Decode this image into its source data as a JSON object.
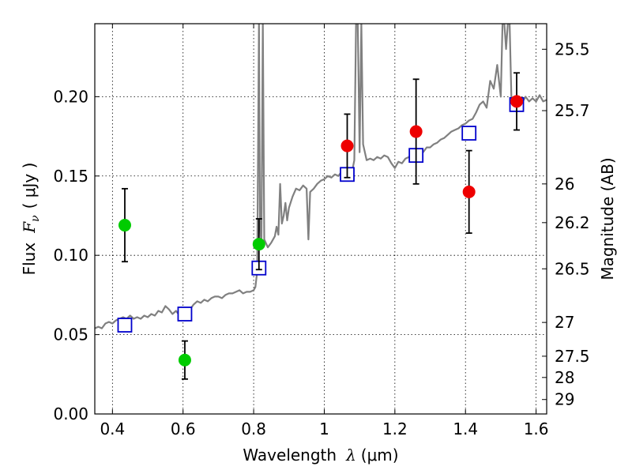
{
  "chart_data": {
    "type": "scatter",
    "xlabel_main": "Wavelength",
    "xlabel_symbol": "λ",
    "xlabel_unit": "(μm)",
    "ylabel_main": "Flux",
    "ylabel_symbol": "F",
    "ylabel_subscript": "ν",
    "ylabel_unit": "( μJy )",
    "y2label": "Magnitude (AB)",
    "xlim": [
      0.35,
      1.63
    ],
    "ylim": [
      0.0,
      0.246
    ],
    "grid": true,
    "x_ticks": [
      0.4,
      0.6,
      0.8,
      1.0,
      1.2,
      1.4,
      1.6
    ],
    "x_tick_labels": [
      "0.4",
      "0.6",
      "0.8",
      "1",
      "1.2",
      "1.4",
      "1.6"
    ],
    "y_ticks": [
      0.0,
      0.05,
      0.1,
      0.15,
      0.2
    ],
    "y_tick_labels": [
      "0.00",
      "0.05",
      "0.10",
      "0.15",
      "0.20"
    ],
    "y2_ticks": [
      {
        "label": "25.5",
        "flux": 0.2299
      },
      {
        "label": "25.7",
        "flux": 0.1912
      },
      {
        "label": "26",
        "flux": 0.145
      },
      {
        "label": "26.2",
        "flux": 0.1206
      },
      {
        "label": "26.5",
        "flux": 0.0915
      },
      {
        "label": "27",
        "flux": 0.0577
      },
      {
        "label": "27.5",
        "flux": 0.0364
      },
      {
        "label": "28",
        "flux": 0.023
      },
      {
        "label": "29",
        "flux": 0.0091
      }
    ],
    "series": [
      {
        "kind": "line",
        "color": "#808080",
        "points": [
          [
            0.35,
            0.054
          ],
          [
            0.36,
            0.055
          ],
          [
            0.37,
            0.054
          ],
          [
            0.38,
            0.057
          ],
          [
            0.39,
            0.058
          ],
          [
            0.4,
            0.057
          ],
          [
            0.41,
            0.059
          ],
          [
            0.42,
            0.06
          ],
          [
            0.43,
            0.061
          ],
          [
            0.44,
            0.06
          ],
          [
            0.45,
            0.062
          ],
          [
            0.46,
            0.06
          ],
          [
            0.47,
            0.061
          ],
          [
            0.48,
            0.06
          ],
          [
            0.49,
            0.062
          ],
          [
            0.5,
            0.061
          ],
          [
            0.51,
            0.063
          ],
          [
            0.52,
            0.062
          ],
          [
            0.53,
            0.065
          ],
          [
            0.54,
            0.064
          ],
          [
            0.55,
            0.068
          ],
          [
            0.56,
            0.066
          ],
          [
            0.57,
            0.063
          ],
          [
            0.58,
            0.065
          ],
          [
            0.59,
            0.062
          ],
          [
            0.6,
            0.064
          ],
          [
            0.61,
            0.063
          ],
          [
            0.62,
            0.066
          ],
          [
            0.63,
            0.069
          ],
          [
            0.64,
            0.071
          ],
          [
            0.65,
            0.07
          ],
          [
            0.66,
            0.072
          ],
          [
            0.67,
            0.071
          ],
          [
            0.68,
            0.073
          ],
          [
            0.69,
            0.074
          ],
          [
            0.7,
            0.074
          ],
          [
            0.71,
            0.073
          ],
          [
            0.72,
            0.075
          ],
          [
            0.73,
            0.076
          ],
          [
            0.74,
            0.076
          ],
          [
            0.75,
            0.077
          ],
          [
            0.76,
            0.078
          ],
          [
            0.77,
            0.076
          ],
          [
            0.78,
            0.077
          ],
          [
            0.79,
            0.077
          ],
          [
            0.8,
            0.078
          ],
          [
            0.805,
            0.08
          ],
          [
            0.81,
            0.09
          ],
          [
            0.815,
            0.246
          ],
          [
            0.818,
            0.12
          ],
          [
            0.822,
            0.106
          ],
          [
            0.826,
            0.246
          ],
          [
            0.83,
            0.11
          ],
          [
            0.84,
            0.105
          ],
          [
            0.85,
            0.108
          ],
          [
            0.86,
            0.112
          ],
          [
            0.865,
            0.118
          ],
          [
            0.87,
            0.113
          ],
          [
            0.875,
            0.145
          ],
          [
            0.88,
            0.12
          ],
          [
            0.885,
            0.125
          ],
          [
            0.89,
            0.133
          ],
          [
            0.895,
            0.122
          ],
          [
            0.9,
            0.13
          ],
          [
            0.91,
            0.137
          ],
          [
            0.92,
            0.142
          ],
          [
            0.93,
            0.141
          ],
          [
            0.94,
            0.144
          ],
          [
            0.95,
            0.142
          ],
          [
            0.955,
            0.11
          ],
          [
            0.96,
            0.14
          ],
          [
            0.97,
            0.142
          ],
          [
            0.98,
            0.145
          ],
          [
            0.99,
            0.147
          ],
          [
            1.0,
            0.148
          ],
          [
            1.01,
            0.15
          ],
          [
            1.02,
            0.149
          ],
          [
            1.03,
            0.151
          ],
          [
            1.04,
            0.15
          ],
          [
            1.05,
            0.153
          ],
          [
            1.06,
            0.152
          ],
          [
            1.07,
            0.155
          ],
          [
            1.08,
            0.154
          ],
          [
            1.085,
            0.16
          ],
          [
            1.09,
            0.246
          ],
          [
            1.095,
            0.246
          ],
          [
            1.1,
            0.165
          ],
          [
            1.105,
            0.246
          ],
          [
            1.11,
            0.17
          ],
          [
            1.12,
            0.16
          ],
          [
            1.13,
            0.161
          ],
          [
            1.14,
            0.16
          ],
          [
            1.15,
            0.162
          ],
          [
            1.16,
            0.161
          ],
          [
            1.17,
            0.163
          ],
          [
            1.18,
            0.162
          ],
          [
            1.19,
            0.158
          ],
          [
            1.2,
            0.155
          ],
          [
            1.21,
            0.159
          ],
          [
            1.22,
            0.158
          ],
          [
            1.23,
            0.161
          ],
          [
            1.24,
            0.162
          ],
          [
            1.25,
            0.165
          ],
          [
            1.26,
            0.164
          ],
          [
            1.27,
            0.166
          ],
          [
            1.28,
            0.165
          ],
          [
            1.29,
            0.168
          ],
          [
            1.3,
            0.168
          ],
          [
            1.31,
            0.17
          ],
          [
            1.32,
            0.171
          ],
          [
            1.33,
            0.173
          ],
          [
            1.34,
            0.174
          ],
          [
            1.35,
            0.176
          ],
          [
            1.36,
            0.178
          ],
          [
            1.37,
            0.179
          ],
          [
            1.38,
            0.18
          ],
          [
            1.39,
            0.182
          ],
          [
            1.4,
            0.183
          ],
          [
            1.41,
            0.185
          ],
          [
            1.42,
            0.186
          ],
          [
            1.43,
            0.19
          ],
          [
            1.44,
            0.195
          ],
          [
            1.45,
            0.197
          ],
          [
            1.46,
            0.193
          ],
          [
            1.47,
            0.21
          ],
          [
            1.48,
            0.205
          ],
          [
            1.49,
            0.22
          ],
          [
            1.5,
            0.2
          ],
          [
            1.505,
            0.246
          ],
          [
            1.51,
            0.246
          ],
          [
            1.515,
            0.23
          ],
          [
            1.52,
            0.246
          ],
          [
            1.525,
            0.246
          ],
          [
            1.53,
            0.2
          ],
          [
            1.54,
            0.198
          ],
          [
            1.55,
            0.199
          ],
          [
            1.56,
            0.196
          ],
          [
            1.57,
            0.2
          ],
          [
            1.58,
            0.197
          ],
          [
            1.59,
            0.199
          ],
          [
            1.6,
            0.197
          ],
          [
            1.61,
            0.201
          ],
          [
            1.62,
            0.197
          ],
          [
            1.63,
            0.198
          ]
        ]
      },
      {
        "kind": "squares",
        "color": "#0000cc",
        "points": [
          [
            0.435,
            0.056
          ],
          [
            0.605,
            0.063
          ],
          [
            0.815,
            0.092
          ],
          [
            1.065,
            0.151
          ],
          [
            1.26,
            0.163
          ],
          [
            1.41,
            0.177
          ],
          [
            1.545,
            0.195
          ]
        ]
      },
      {
        "kind": "points",
        "color": "#00cc00",
        "points": [
          {
            "x": 0.435,
            "y": 0.119,
            "err": 0.023
          },
          {
            "x": 0.605,
            "y": 0.034,
            "err": 0.012
          },
          {
            "x": 0.815,
            "y": 0.107,
            "err": 0.016
          }
        ]
      },
      {
        "kind": "points",
        "color": "#ee0000",
        "points": [
          {
            "x": 1.065,
            "y": 0.169,
            "err": 0.02
          },
          {
            "x": 1.26,
            "y": 0.178,
            "err": 0.033
          },
          {
            "x": 1.41,
            "y": 0.14,
            "err": 0.026
          },
          {
            "x": 1.545,
            "y": 0.197,
            "err": 0.018
          }
        ]
      }
    ]
  }
}
